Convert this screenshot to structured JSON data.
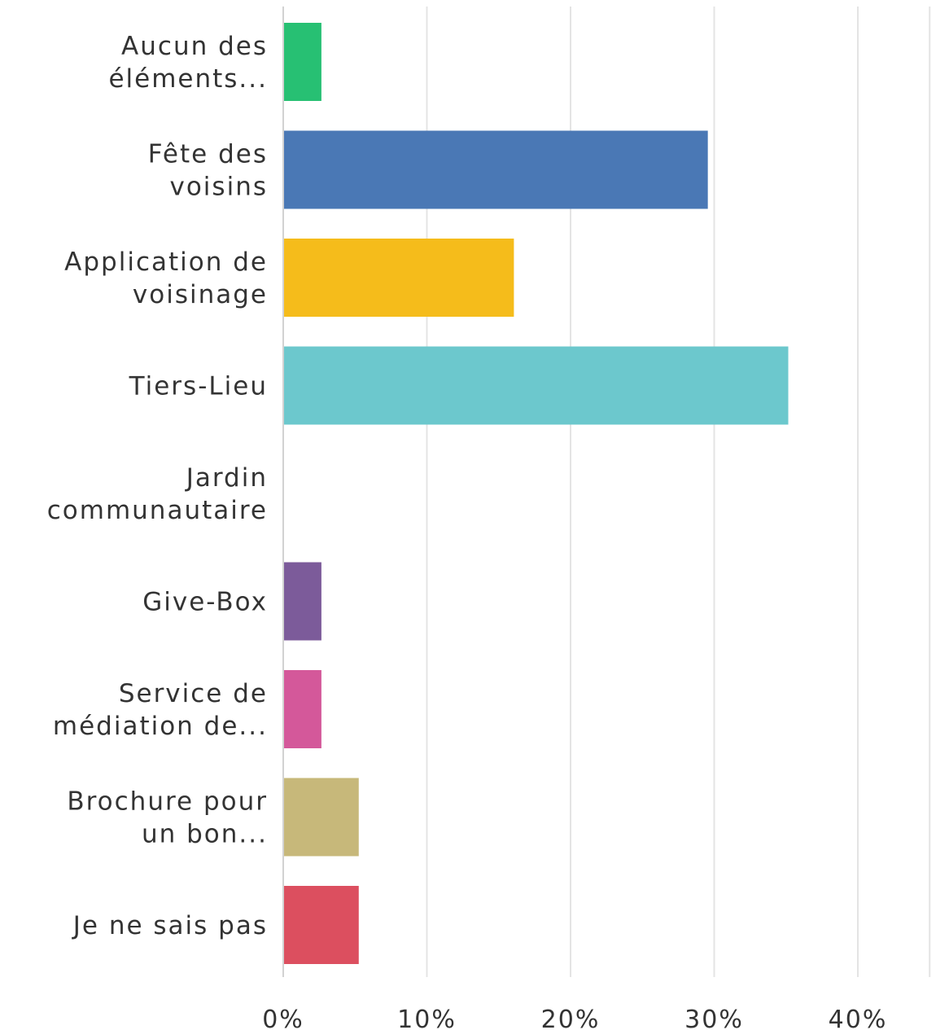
{
  "chart_data": {
    "type": "bar",
    "orientation": "horizontal",
    "categories": [
      [
        "Aucun des",
        "éléments..."
      ],
      [
        "Fête des",
        "voisins"
      ],
      [
        "Application de",
        "voisinage"
      ],
      [
        "Tiers-Lieu"
      ],
      [
        "Jardin",
        "communautaire"
      ],
      [
        "Give-Box"
      ],
      [
        "Service de",
        "médiation de..."
      ],
      [
        "Brochure pour",
        "un bon..."
      ],
      [
        "Je ne sais pas"
      ]
    ],
    "values": [
      2.6,
      29.5,
      16.0,
      35.1,
      0.0,
      2.6,
      2.6,
      5.2,
      5.2
    ],
    "colors": [
      "#27c073",
      "#4a78b5",
      "#f5bc1b",
      "#6cc8cd",
      "#cccccc",
      "#7c5b9a",
      "#d4589a",
      "#c7b87a",
      "#dc4f5f"
    ],
    "x_ticks": [
      "0%",
      "10%",
      "20%",
      "30%",
      "40%"
    ],
    "xlim": [
      0,
      45
    ],
    "grid": true,
    "legend": "none",
    "title": "",
    "xlabel": "",
    "ylabel": ""
  }
}
